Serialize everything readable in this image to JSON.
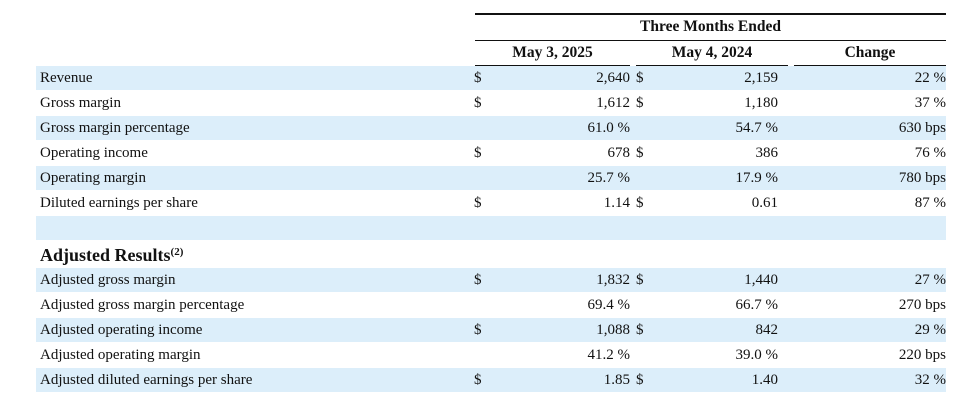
{
  "header": {
    "group_title": "Three Months Ended",
    "col1": "May 3, 2025",
    "col2": "May 4, 2024",
    "col3": "Change"
  },
  "section_title": "Adjusted Results",
  "section_footnote": "(2)",
  "rows": [
    {
      "label": "Revenue",
      "sym1": "$",
      "v1": "2,640",
      "sym2": "$",
      "v2": "2,159",
      "change": "22 %"
    },
    {
      "label": "Gross margin",
      "sym1": "$",
      "v1": "1,612",
      "sym2": "$",
      "v2": "1,180",
      "change": "37 %"
    },
    {
      "label": "Gross margin percentage",
      "sym1": "",
      "v1": "61.0 %",
      "sym2": "",
      "v2": "54.7 %",
      "change": "630 bps"
    },
    {
      "label": "Operating income",
      "sym1": "$",
      "v1": "678",
      "sym2": "$",
      "v2": "386",
      "change": "76 %"
    },
    {
      "label": "Operating margin",
      "sym1": "",
      "v1": "25.7 %",
      "sym2": "",
      "v2": "17.9 %",
      "change": "780 bps"
    },
    {
      "label": "Diluted earnings per share",
      "sym1": "$",
      "v1": "1.14",
      "sym2": "$",
      "v2": "0.61",
      "change": "87 %"
    }
  ],
  "adjusted_rows": [
    {
      "label": "Adjusted gross margin",
      "sym1": "$",
      "v1": "1,832",
      "sym2": "$",
      "v2": "1,440",
      "change": "27 %"
    },
    {
      "label": "Adjusted gross margin percentage",
      "sym1": "",
      "v1": "69.4 %",
      "sym2": "",
      "v2": "66.7 %",
      "change": "270 bps"
    },
    {
      "label": "Adjusted operating income",
      "sym1": "$",
      "v1": "1,088",
      "sym2": "$",
      "v2": "842",
      "change": "29 %"
    },
    {
      "label": "Adjusted operating margin",
      "sym1": "",
      "v1": "41.2 %",
      "sym2": "",
      "v2": "39.0 %",
      "change": "220 bps"
    },
    {
      "label": "Adjusted diluted earnings per share",
      "sym1": "$",
      "v1": "1.85",
      "sym2": "$",
      "v2": "1.40",
      "change": "32 %"
    }
  ]
}
